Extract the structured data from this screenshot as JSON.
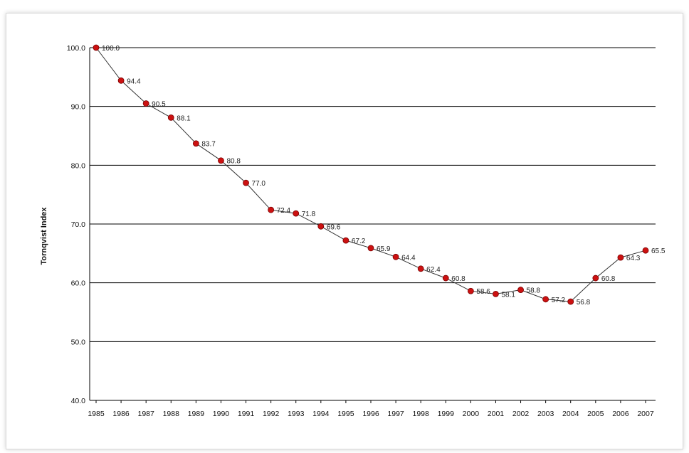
{
  "chart_data": {
    "type": "line",
    "title": "",
    "xlabel": "",
    "ylabel": "Tornqvist Index",
    "categories": [
      "1985",
      "1986",
      "1987",
      "1988",
      "1989",
      "1990",
      "1991",
      "1992",
      "1993",
      "1994",
      "1995",
      "1996",
      "1997",
      "1998",
      "1999",
      "2000",
      "2001",
      "2002",
      "2003",
      "2004",
      "2005",
      "2006",
      "2007"
    ],
    "values": [
      100.0,
      94.4,
      90.5,
      88.1,
      83.7,
      80.8,
      77.0,
      72.4,
      71.8,
      69.6,
      67.2,
      65.9,
      64.4,
      62.4,
      60.8,
      58.6,
      58.1,
      58.8,
      57.2,
      56.8,
      60.8,
      64.3,
      65.5
    ],
    "data_labels": [
      "100.0",
      "94.4",
      "90.5",
      "88.1",
      "83.7",
      "80.8",
      "77.0",
      "72.4",
      "71.8",
      "69.6",
      "67.2",
      "65.9",
      "64.4",
      "62.4",
      "60.8",
      "58.6",
      "58.1",
      "58.8",
      "57.2",
      "56.8",
      "60.8",
      "64.3",
      "65.5"
    ],
    "ylim": [
      40,
      100
    ],
    "yticks": [
      40,
      50,
      60,
      70,
      80,
      90,
      100
    ],
    "ytick_labels": [
      "40.0",
      "50.0",
      "60.0",
      "70.0",
      "80.0",
      "90.0",
      "100.0"
    ],
    "grid": true,
    "colors": {
      "line": "#333333",
      "marker": "#cc1111",
      "marker_edge": "#7a0000",
      "grid": "#000000"
    }
  }
}
